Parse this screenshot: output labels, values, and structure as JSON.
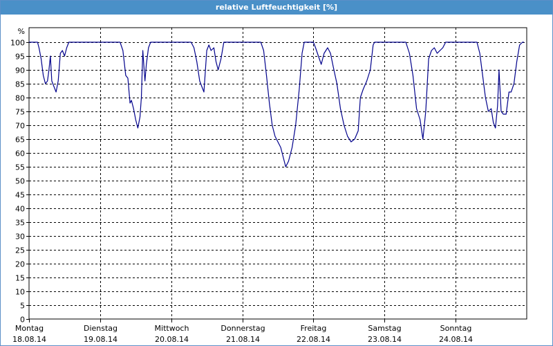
{
  "window": {
    "title": "relative Luftfeuchtigkeit [%]"
  },
  "chart_data": {
    "type": "line",
    "title": "relative Luftfeuchtigkeit [%]",
    "ylabel": "%",
    "xlabel": "",
    "ylim": [
      0,
      100
    ],
    "yticks": [
      0,
      5,
      10,
      15,
      20,
      25,
      30,
      35,
      40,
      45,
      50,
      55,
      60,
      65,
      70,
      75,
      80,
      85,
      90,
      95,
      100
    ],
    "grid": true,
    "line_color": "#00008b",
    "day_labels": [
      {
        "day": "Montag",
        "date": "18.08.14"
      },
      {
        "day": "Dienstag",
        "date": "19.08.14"
      },
      {
        "day": "Mittwoch",
        "date": "20.08.14"
      },
      {
        "day": "Donnerstag",
        "date": "21.08.14"
      },
      {
        "day": "Freitag",
        "date": "22.08.14"
      },
      {
        "day": "Samstag",
        "date": "23.08.14"
      },
      {
        "day": "Sonntag",
        "date": "24.08.14"
      }
    ],
    "xlim_days": [
      0,
      7
    ],
    "series": [
      {
        "points": [
          [
            0.0,
            100
          ],
          [
            0.12,
            100
          ],
          [
            0.14,
            98
          ],
          [
            0.17,
            94
          ],
          [
            0.2,
            88
          ],
          [
            0.23,
            85
          ],
          [
            0.26,
            86
          ],
          [
            0.28,
            90
          ],
          [
            0.3,
            95
          ],
          [
            0.32,
            86
          ],
          [
            0.35,
            84
          ],
          [
            0.38,
            82
          ],
          [
            0.41,
            86
          ],
          [
            0.44,
            96
          ],
          [
            0.47,
            97
          ],
          [
            0.5,
            95
          ],
          [
            0.53,
            98
          ],
          [
            0.56,
            100
          ],
          [
            0.7,
            100
          ],
          [
            1.0,
            100
          ],
          [
            1.28,
            100
          ],
          [
            1.32,
            97
          ],
          [
            1.36,
            88
          ],
          [
            1.39,
            87
          ],
          [
            1.42,
            78
          ],
          [
            1.44,
            79
          ],
          [
            1.47,
            76
          ],
          [
            1.5,
            72
          ],
          [
            1.53,
            69
          ],
          [
            1.56,
            73
          ],
          [
            1.58,
            80
          ],
          [
            1.6,
            97
          ],
          [
            1.63,
            86
          ],
          [
            1.65,
            92
          ],
          [
            1.68,
            98
          ],
          [
            1.71,
            100
          ],
          [
            2.0,
            100
          ],
          [
            2.28,
            100
          ],
          [
            2.32,
            98
          ],
          [
            2.36,
            93
          ],
          [
            2.4,
            86
          ],
          [
            2.43,
            84
          ],
          [
            2.46,
            82
          ],
          [
            2.5,
            97
          ],
          [
            2.53,
            99
          ],
          [
            2.56,
            97
          ],
          [
            2.6,
            98
          ],
          [
            2.63,
            93
          ],
          [
            2.66,
            90
          ],
          [
            2.7,
            94
          ],
          [
            2.74,
            100
          ],
          [
            3.0,
            100
          ],
          [
            3.26,
            100
          ],
          [
            3.3,
            97
          ],
          [
            3.34,
            88
          ],
          [
            3.38,
            78
          ],
          [
            3.42,
            70
          ],
          [
            3.46,
            66
          ],
          [
            3.5,
            64
          ],
          [
            3.54,
            62
          ],
          [
            3.58,
            58
          ],
          [
            3.61,
            55
          ],
          [
            3.65,
            57
          ],
          [
            3.7,
            62
          ],
          [
            3.75,
            70
          ],
          [
            3.8,
            83
          ],
          [
            3.84,
            96
          ],
          [
            3.87,
            100
          ],
          [
            4.0,
            100
          ],
          [
            4.03,
            98
          ],
          [
            4.07,
            95
          ],
          [
            4.11,
            92
          ],
          [
            4.15,
            96
          ],
          [
            4.2,
            98
          ],
          [
            4.24,
            96
          ],
          [
            4.28,
            91
          ],
          [
            4.33,
            85
          ],
          [
            4.38,
            76
          ],
          [
            4.43,
            70
          ],
          [
            4.48,
            66
          ],
          [
            4.53,
            64
          ],
          [
            4.58,
            65
          ],
          [
            4.63,
            68
          ],
          [
            4.66,
            80
          ],
          [
            4.7,
            83
          ],
          [
            4.75,
            86
          ],
          [
            4.8,
            90
          ],
          [
            4.84,
            99
          ],
          [
            4.86,
            100
          ],
          [
            5.0,
            100
          ],
          [
            5.3,
            100
          ],
          [
            5.35,
            96
          ],
          [
            5.4,
            88
          ],
          [
            5.45,
            76
          ],
          [
            5.5,
            72
          ],
          [
            5.54,
            65
          ],
          [
            5.58,
            75
          ],
          [
            5.62,
            94
          ],
          [
            5.66,
            97
          ],
          [
            5.7,
            98
          ],
          [
            5.74,
            96
          ],
          [
            5.78,
            97
          ],
          [
            5.82,
            98
          ],
          [
            5.86,
            100
          ],
          [
            6.0,
            100
          ],
          [
            6.3,
            100
          ],
          [
            6.34,
            96
          ],
          [
            6.38,
            88
          ],
          [
            6.42,
            80
          ],
          [
            6.46,
            75
          ],
          [
            6.5,
            76
          ],
          [
            6.53,
            71
          ],
          [
            6.56,
            69
          ],
          [
            6.59,
            77
          ],
          [
            6.61,
            90
          ],
          [
            6.64,
            75
          ],
          [
            6.67,
            74
          ],
          [
            6.71,
            74
          ],
          [
            6.75,
            82
          ],
          [
            6.78,
            82
          ],
          [
            6.82,
            85
          ],
          [
            6.86,
            93
          ],
          [
            6.9,
            99
          ],
          [
            6.94,
            100
          ],
          [
            6.96,
            100
          ]
        ]
      }
    ]
  }
}
